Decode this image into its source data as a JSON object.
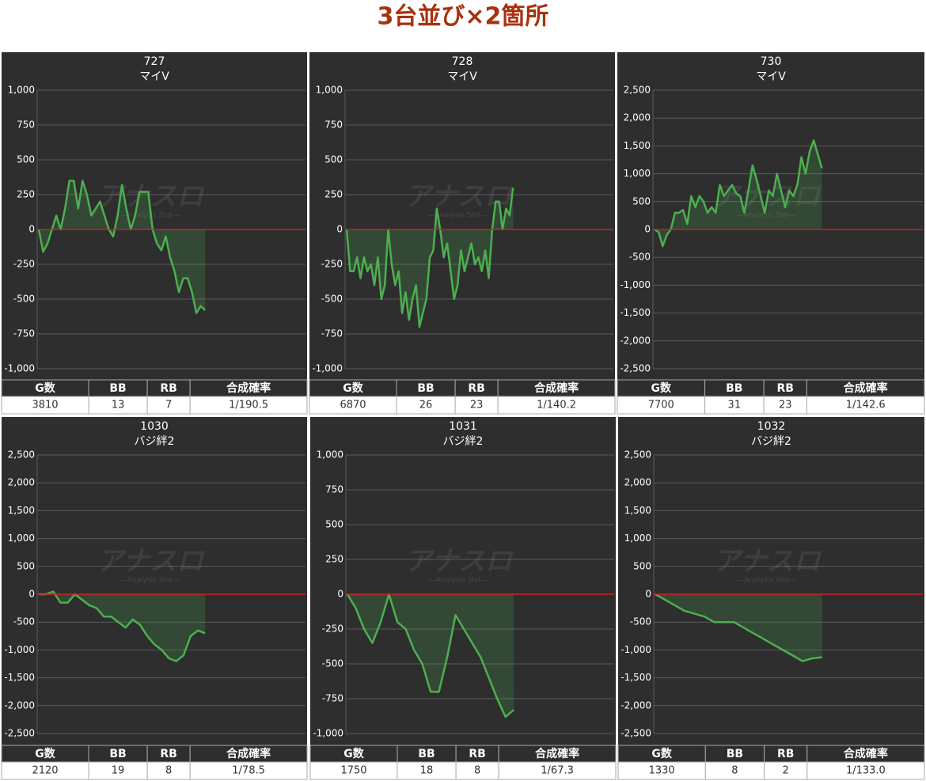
{
  "title": "3台並び×2箇所",
  "watermark": "アナスロ",
  "watermark_sub": "—Analysis Slot—",
  "chart_data": [
    {
      "type": "line",
      "title": "727",
      "subtitle": "マイV",
      "color": "#4caf50",
      "zero_line_color": "#cc2222",
      "grid": true,
      "values": [
        0,
        -160,
        -100,
        0,
        100,
        0,
        150,
        350,
        350,
        150,
        350,
        250,
        100,
        150,
        200,
        100,
        0,
        -50,
        100,
        320,
        150,
        0,
        100,
        270,
        270,
        270,
        0,
        -100,
        -150,
        -50,
        -200,
        -300,
        -450,
        -350,
        -350,
        -450,
        -600,
        -550,
        -580
      ],
      "ylim": [
        -1000,
        1000
      ],
      "yticks": [
        {
          "value": 1000,
          "label": "1,000"
        },
        750,
        500,
        250,
        0,
        -250,
        -500,
        -750,
        {
          "value": -1000,
          "label": "-1,000"
        }
      ],
      "table": {
        "headers": [
          "G数",
          "BB",
          "RB",
          "合成確率"
        ],
        "row": [
          3810,
          13,
          7,
          "1/190.5"
        ]
      }
    },
    {
      "type": "line",
      "title": "728",
      "subtitle": "マイV",
      "color": "#4caf50",
      "zero_line_color": "#cc2222",
      "grid": true,
      "values": [
        0,
        -300,
        -300,
        -200,
        -350,
        -200,
        -300,
        -250,
        -400,
        -200,
        -500,
        -400,
        0,
        -250,
        -400,
        -300,
        -600,
        -450,
        -650,
        -500,
        -400,
        -700,
        -600,
        -500,
        -200,
        -150,
        150,
        0,
        -200,
        -100,
        -300,
        -500,
        -400,
        -150,
        -300,
        -200,
        -100,
        -250,
        -200,
        -300,
        -150,
        -350,
        0,
        200,
        200,
        0,
        150,
        100,
        300
      ],
      "ylim": [
        -1000,
        1000
      ],
      "yticks": [
        {
          "value": 1000,
          "label": "1,000"
        },
        750,
        500,
        250,
        0,
        -250,
        -500,
        -750,
        {
          "value": -1000,
          "label": "-1,000"
        }
      ],
      "table": {
        "headers": [
          "G数",
          "BB",
          "RB",
          "合成確率"
        ],
        "row": [
          6870,
          26,
          23,
          "1/140.2"
        ]
      }
    },
    {
      "type": "line",
      "title": "730",
      "subtitle": "マイV",
      "color": "#4caf50",
      "zero_line_color": "#cc2222",
      "grid": true,
      "values": [
        0,
        -50,
        -300,
        -100,
        0,
        300,
        300,
        350,
        100,
        600,
        400,
        600,
        500,
        300,
        400,
        300,
        800,
        600,
        700,
        800,
        650,
        600,
        300,
        700,
        1150,
        900,
        600,
        300,
        700,
        600,
        1000,
        700,
        400,
        700,
        600,
        800,
        1300,
        1000,
        1400,
        1600,
        1350,
        1100
      ],
      "ylim": [
        -2500,
        2500
      ],
      "yticks": [
        {
          "value": 2500,
          "label": "2,500"
        },
        {
          "value": 2000,
          "label": "2,000"
        },
        {
          "value": 1500,
          "label": "1,500"
        },
        {
          "value": 1000,
          "label": "1,000"
        },
        500,
        0,
        -500,
        {
          "value": -1000,
          "label": "-1,000"
        },
        {
          "value": -1500,
          "label": "-1,500"
        },
        {
          "value": -2000,
          "label": "-2,000"
        },
        {
          "value": -2500,
          "label": "-2,500"
        }
      ],
      "table": {
        "headers": [
          "G数",
          "BB",
          "RB",
          "合成確率"
        ],
        "row": [
          7700,
          31,
          23,
          "1/142.6"
        ]
      }
    },
    {
      "type": "line",
      "title": "1030",
      "subtitle": "バジ絆2",
      "color": "#4caf50",
      "zero_line_color": "#cc2222",
      "grid": true,
      "values": [
        0,
        0,
        50,
        -150,
        -150,
        0,
        -100,
        -200,
        -250,
        -400,
        -400,
        -500,
        -600,
        -450,
        -550,
        -750,
        -900,
        -1000,
        -1150,
        -1200,
        -1100,
        -750,
        -650,
        -700
      ],
      "ylim": [
        -2500,
        2500
      ],
      "yticks": [
        {
          "value": 2500,
          "label": "2,500"
        },
        {
          "value": 2000,
          "label": "2,000"
        },
        {
          "value": 1500,
          "label": "1,500"
        },
        {
          "value": 1000,
          "label": "1,000"
        },
        500,
        0,
        -500,
        {
          "value": -1000,
          "label": "-1,000"
        },
        {
          "value": -1500,
          "label": "-1,500"
        },
        {
          "value": -2000,
          "label": "-2,000"
        },
        {
          "value": -2500,
          "label": "-2,500"
        }
      ],
      "table": {
        "headers": [
          "G数",
          "BB",
          "RB",
          "合成確率"
        ],
        "row": [
          2120,
          19,
          8,
          "1/78.5"
        ]
      }
    },
    {
      "type": "line",
      "title": "1031",
      "subtitle": "バジ絆2",
      "color": "#4caf50",
      "zero_line_color": "#cc2222",
      "grid": true,
      "values": [
        0,
        -100,
        -250,
        -350,
        -200,
        0,
        -200,
        -250,
        -400,
        -500,
        -700,
        -700,
        -450,
        -150,
        -250,
        -350,
        -450,
        -600,
        -750,
        -880,
        -830
      ],
      "ylim": [
        -1000,
        1000
      ],
      "yticks": [
        {
          "value": 1000,
          "label": "1,000"
        },
        750,
        500,
        250,
        0,
        -250,
        -500,
        -750,
        {
          "value": -1000,
          "label": "-1,000"
        }
      ],
      "table": {
        "headers": [
          "G数",
          "BB",
          "RB",
          "合成確率"
        ],
        "row": [
          1750,
          18,
          8,
          "1/67.3"
        ]
      }
    },
    {
      "type": "line",
      "title": "1032",
      "subtitle": "バジ絆2",
      "color": "#4caf50",
      "zero_line_color": "#cc2222",
      "grid": true,
      "values": [
        0,
        -100,
        -200,
        -300,
        -350,
        -400,
        -500,
        -500,
        -500,
        -600,
        -700,
        -800,
        -900,
        -1000,
        -1100,
        -1200,
        -1150,
        -1130
      ],
      "ylim": [
        -2500,
        2500
      ],
      "yticks": [
        {
          "value": 2500,
          "label": "2,500"
        },
        {
          "value": 2000,
          "label": "2,000"
        },
        {
          "value": 1500,
          "label": "1,500"
        },
        {
          "value": 1000,
          "label": "1,000"
        },
        500,
        0,
        -500,
        {
          "value": -1000,
          "label": "-1,000"
        },
        {
          "value": -1500,
          "label": "-1,500"
        },
        {
          "value": -2000,
          "label": "-2,000"
        },
        {
          "value": -2500,
          "label": "-2,500"
        }
      ],
      "table": {
        "headers": [
          "G数",
          "BB",
          "RB",
          "合成確率"
        ],
        "row": [
          1330,
          8,
          2,
          "1/133.0"
        ]
      }
    }
  ]
}
